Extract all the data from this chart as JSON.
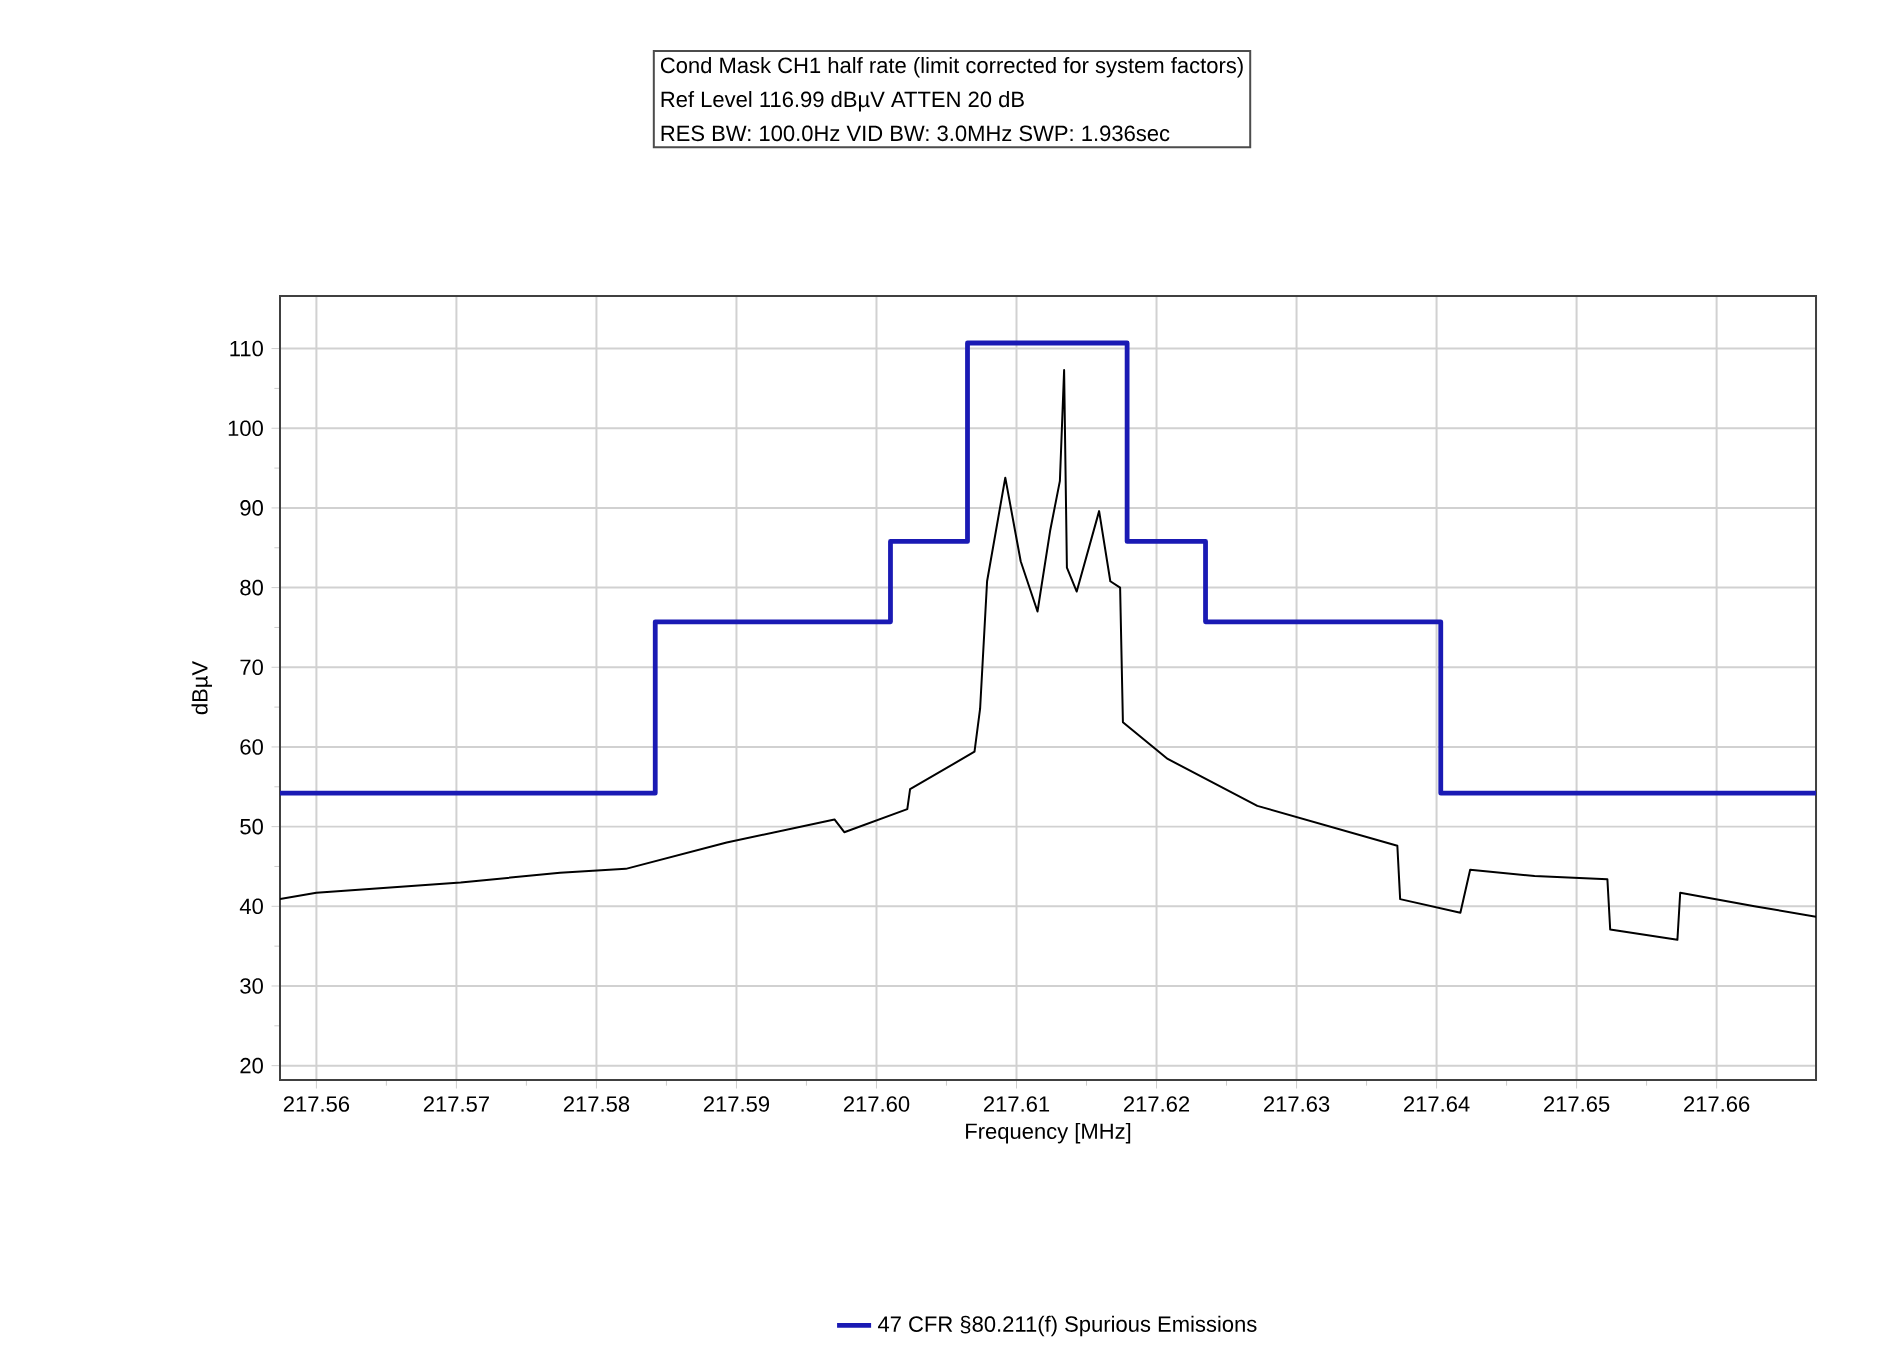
{
  "chart_data": {
    "type": "line",
    "title": "Cond Mask CH1 half rate (limit corrected for system factors)",
    "subtitle": "Ref Level 116.99 dBµV    ATTEN 20 dB",
    "annotations": [
      "RES BW: 100.0Hz  VID BW: 3.0MHz  SWP: 1.936sec"
    ],
    "xlabel": "Frequency [MHz]",
    "ylabel": "dBµV",
    "xlim": [
      217.5574,
      217.6671
    ],
    "ylim": [
      18.2,
      116.6
    ],
    "xticks": [
      {
        "value": 217.56,
        "label": "217.56"
      },
      {
        "value": 217.57,
        "label": "217.57"
      },
      {
        "value": 217.58,
        "label": "217.58"
      },
      {
        "value": 217.59,
        "label": "217.59"
      },
      {
        "value": 217.6,
        "label": "217.60"
      },
      {
        "value": 217.61,
        "label": "217.61"
      },
      {
        "value": 217.62,
        "label": "217.62"
      },
      {
        "value": 217.63,
        "label": "217.63"
      },
      {
        "value": 217.64,
        "label": "217.64"
      },
      {
        "value": 217.65,
        "label": "217.65"
      },
      {
        "value": 217.66,
        "label": "217.66"
      }
    ],
    "yticks": [
      20,
      30,
      40,
      50,
      60,
      70,
      80,
      90,
      100,
      110
    ],
    "grid": true,
    "legend": "bottom",
    "series": [
      {
        "name": "47 CFR §80.211(f) Spurious Emissions",
        "type": "step",
        "color": "#1a1ab4",
        "x": [
          217.5574,
          217.5842,
          217.601,
          217.6065,
          217.6179,
          217.6235,
          217.6403,
          217.6671
        ],
        "values": [
          54.2,
          75.7,
          85.8,
          110.7,
          85.8,
          75.7,
          54.2,
          54.2
        ]
      },
      {
        "color": "#000000",
        "x": [
          217.5574,
          217.56,
          217.5703,
          217.5774,
          217.5821,
          217.5893,
          217.597,
          217.5977,
          217.6022,
          217.6024,
          217.607,
          217.6074,
          217.6079,
          217.6092,
          217.6103,
          217.6115,
          217.6124,
          217.6131,
          217.6134,
          217.6136,
          217.6143,
          217.6159,
          217.6167,
          217.6174,
          217.6176,
          217.6208,
          217.6272,
          217.6372,
          217.6374,
          217.6417,
          217.6424,
          217.647,
          217.6522,
          217.6524,
          217.6572,
          217.6574,
          217.6627,
          217.6671
        ],
        "values": [
          40.9,
          41.7,
          43.0,
          44.2,
          44.7,
          48.0,
          50.9,
          49.3,
          52.2,
          54.7,
          59.4,
          64.8,
          80.8,
          93.8,
          83.3,
          77.0,
          87.1,
          93.4,
          107.3,
          82.5,
          79.5,
          89.6,
          80.8,
          80.0,
          63.1,
          58.5,
          52.6,
          47.6,
          40.9,
          39.2,
          44.6,
          43.8,
          43.4,
          37.1,
          35.8,
          41.7,
          40.0,
          38.7
        ]
      }
    ]
  }
}
